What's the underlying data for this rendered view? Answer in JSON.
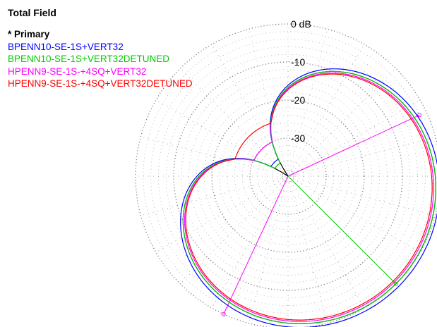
{
  "chart_data": {
    "type": "polar",
    "title": "Total Field",
    "ring_labels": [
      "0 dB",
      "-10",
      "-20",
      "-30"
    ],
    "radial_rings_db": [
      0,
      -10,
      -20,
      -30
    ],
    "radial_range_db": [
      -40,
      0
    ],
    "grid": true,
    "angular_grid_step_deg": 15,
    "legend_location": "top-left",
    "legend": [
      {
        "label": "* Primary",
        "color": "#000000"
      },
      {
        "label": "BPENN10-SE-1S+VERT32",
        "color": "#0000ff"
      },
      {
        "label": "BPENN10-SE-1S+VERT32DETUNED",
        "color": "#00cc00"
      },
      {
        "label": "HPENN9-SE-1S-+4SQ+VERT32",
        "color": "#ff00ff"
      },
      {
        "label": "HPENN9-SE-1S-+4SQ+VERT32DETUNED",
        "color": "#ff0000"
      }
    ],
    "series": [
      {
        "color": "#000000",
        "pattern": "cardioid",
        "main_lobe_azimuth_deg": 135,
        "null_azimuth_deg": 315,
        "front_to_back_db": 40,
        "scale": 1.0
      },
      {
        "color": "#0000ff",
        "pattern": "cardioid",
        "main_lobe_azimuth_deg": 135,
        "null_azimuth_deg": 315,
        "front_to_back_db": 35,
        "scale": 1.025
      },
      {
        "color": "#00cc00",
        "pattern": "cardioid",
        "main_lobe_azimuth_deg": 135,
        "null_azimuth_deg": 315,
        "front_to_back_db": 36,
        "scale": 1.0
      },
      {
        "color": "#ff00ff",
        "pattern": "cardioid",
        "main_lobe_azimuth_deg": 135,
        "null_azimuth_deg": 315,
        "front_to_back_db": 30,
        "scale": 0.985
      },
      {
        "color": "#ff0000",
        "pattern": "cardioid",
        "main_lobe_azimuth_deg": 135,
        "null_azimuth_deg": 315,
        "front_to_back_db": 25,
        "scale": 0.975
      }
    ],
    "markers": [
      {
        "color": "#00cc00",
        "azimuth_deg": 135,
        "value_db": 0
      },
      {
        "color": "#ff00ff",
        "azimuth_deg": 205,
        "value_db": 0
      },
      {
        "color": "#ff00ff",
        "azimuth_deg": 65,
        "value_db": -2
      }
    ]
  }
}
